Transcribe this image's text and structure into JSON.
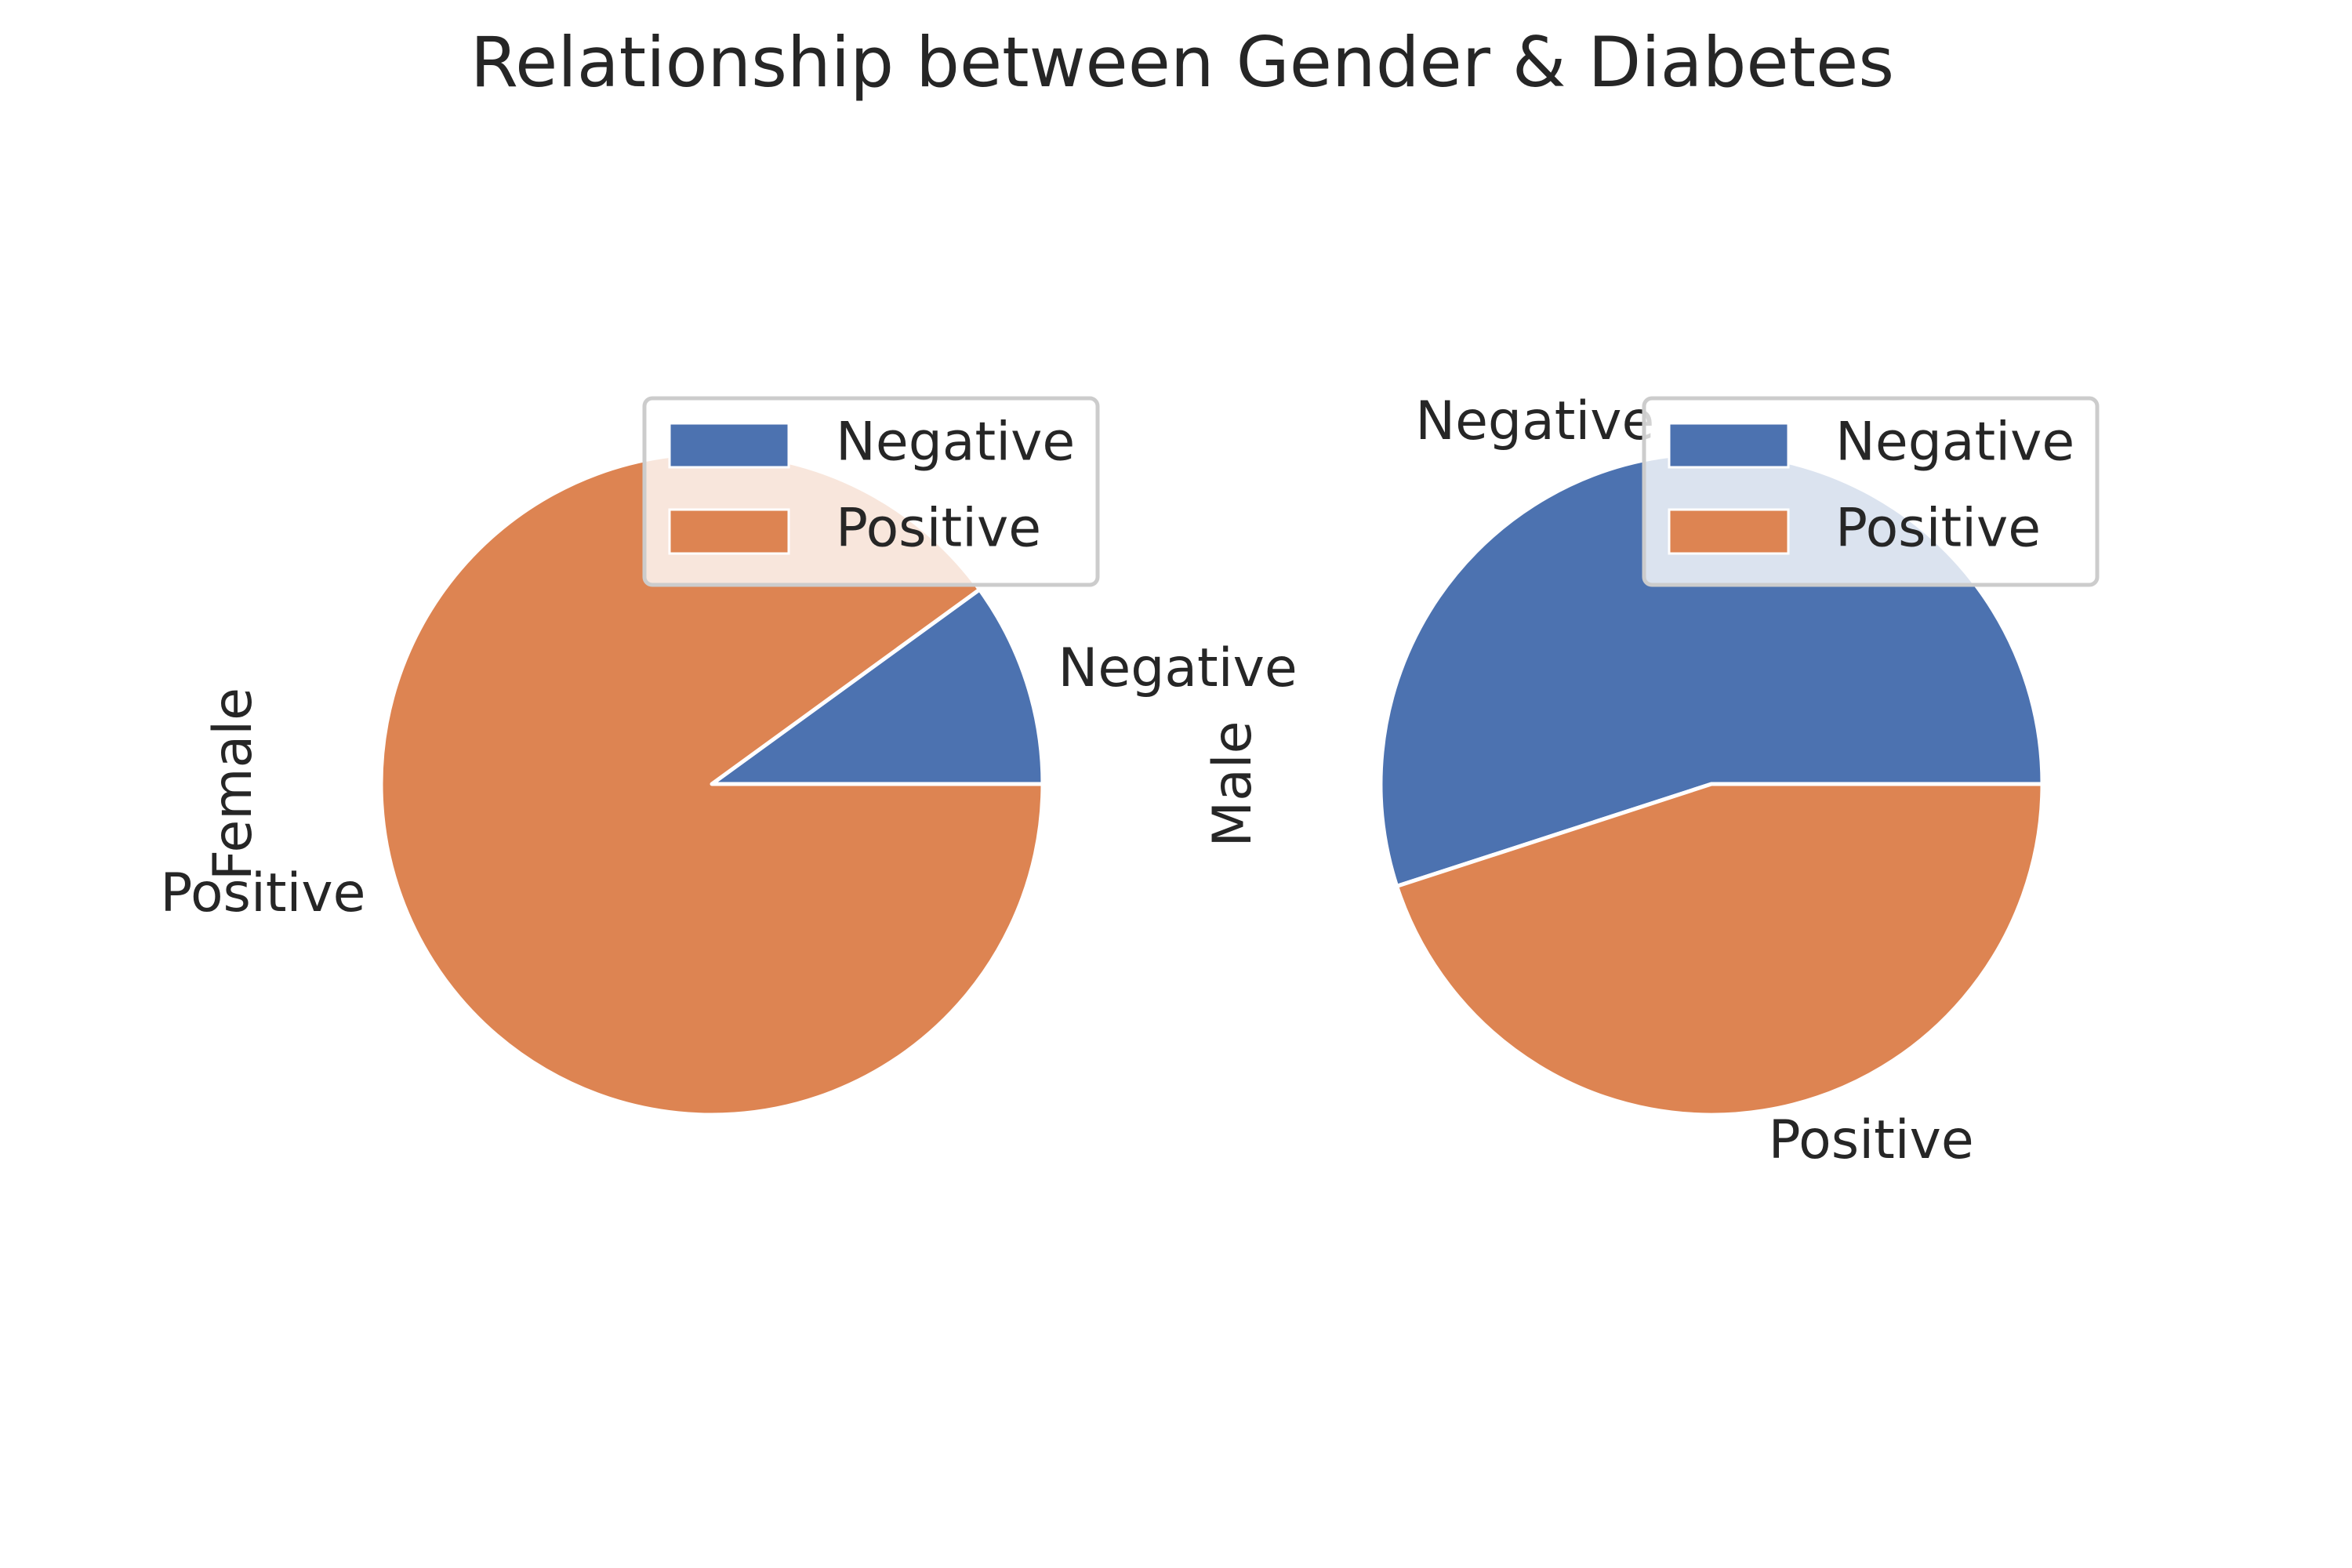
{
  "title": "Relationship between Gender & Diabetes",
  "colors": {
    "Negative": "#4c72b0",
    "Positive": "#dd8452"
  },
  "chart_data": [
    {
      "type": "pie",
      "ylabel": "Female",
      "categories": [
        "Negative",
        "Positive"
      ],
      "values": [
        10,
        90
      ],
      "startangle_deg": 0,
      "legend": {
        "entries": [
          "Negative",
          "Positive"
        ],
        "placement": "upper-right"
      }
    },
    {
      "type": "pie",
      "ylabel": "Male",
      "categories": [
        "Negative",
        "Positive"
      ],
      "values": [
        55,
        45
      ],
      "startangle_deg": 0,
      "legend": {
        "entries": [
          "Negative",
          "Positive"
        ],
        "placement": "upper-right"
      }
    }
  ]
}
